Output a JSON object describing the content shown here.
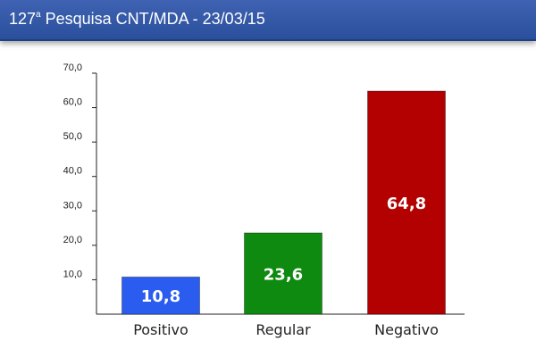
{
  "header": {
    "title_prefix": "127",
    "title_sup": "a",
    "title_rest": " Pesquisa CNT/MDA - 23/03/15"
  },
  "chart_data": {
    "type": "bar",
    "title": "127ª Pesquisa CNT/MDA - 23/03/15",
    "categories": [
      "Positivo",
      "Regular",
      "Negativo"
    ],
    "values": [
      10.8,
      23.6,
      64.8
    ],
    "data_labels": [
      "10,8",
      "23,6",
      "64,8"
    ],
    "colors": [
      "#2b5cf0",
      "#0f8a10",
      "#b30000"
    ],
    "ylim": [
      0,
      70
    ],
    "yticks": [
      10,
      20,
      30,
      40,
      50,
      60,
      70
    ],
    "ytick_labels": [
      "10,0",
      "20,0",
      "30,0",
      "40,0",
      "50,0",
      "60,0",
      "70,0"
    ],
    "grid": false,
    "legend": "none",
    "xlabel": "",
    "ylabel": ""
  }
}
